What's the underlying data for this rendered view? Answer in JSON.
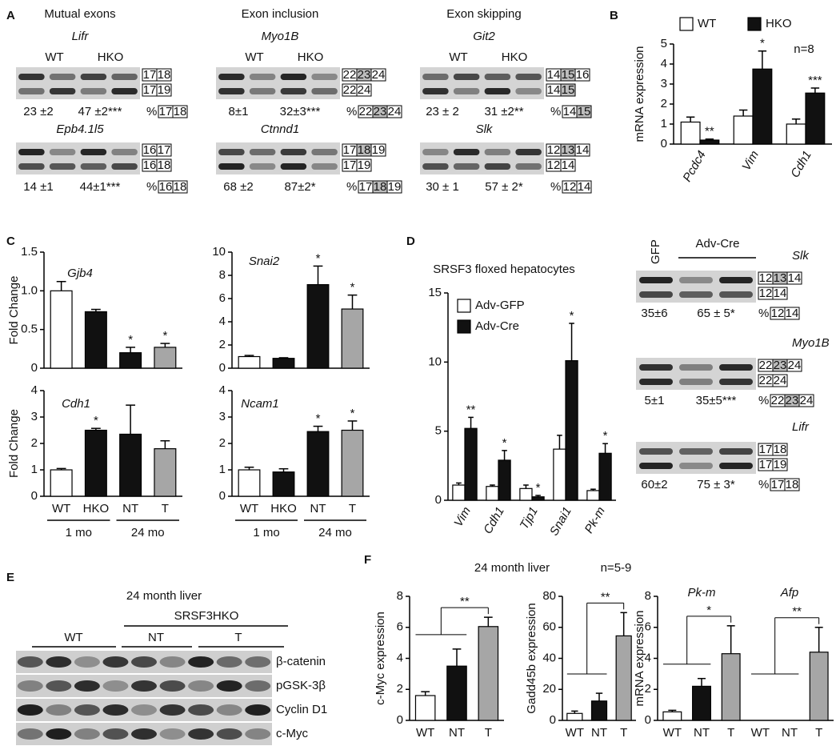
{
  "panel_labels": [
    "A",
    "B",
    "C",
    "D",
    "E",
    "F"
  ],
  "percent_sign": "%",
  "panel_a": {
    "headers": [
      "Mutual exons",
      "Exon inclusion",
      "Exon skipping"
    ],
    "lanes": [
      "WT",
      "HKO"
    ],
    "gels": [
      {
        "gene": "Lifr",
        "percent": [
          "23 ±2",
          "47 ±2***"
        ],
        "isoforms": [
          [
            "17",
            "18"
          ],
          [
            "17",
            "19"
          ]
        ],
        "quantified": [
          "17",
          "18"
        ]
      },
      {
        "gene": "Epb4.1l5",
        "percent": [
          "14 ±1",
          "44±1***"
        ],
        "isoforms": [
          [
            "16",
            "17"
          ],
          [
            "16",
            "18"
          ]
        ],
        "quantified": [
          "16",
          "18"
        ]
      },
      {
        "gene": "Myo1B",
        "percent": [
          "8±1",
          "32±3***"
        ],
        "isoforms": [
          [
            "22",
            "23",
            "24"
          ],
          [
            "22",
            "24"
          ]
        ],
        "quantified": [
          "22",
          "23",
          "24"
        ],
        "shaded": "23"
      },
      {
        "gene": "Ctnnd1",
        "percent": [
          "68 ±2",
          "87±2*"
        ],
        "isoforms": [
          [
            "17",
            "18",
            "19"
          ],
          [
            "17",
            "19"
          ]
        ],
        "quantified": [
          "17",
          "18",
          "19"
        ],
        "shaded": "18"
      },
      {
        "gene": "Git2",
        "percent": [
          "23 ± 2",
          "31 ±2**"
        ],
        "isoforms": [
          [
            "14",
            "15",
            "16"
          ],
          [
            "14",
            "15"
          ]
        ],
        "quantified": [
          "14",
          "15"
        ],
        "shaded": "15"
      },
      {
        "gene": "Slk",
        "percent": [
          "30 ± 1",
          "57 ± 2*"
        ],
        "isoforms": [
          [
            "12",
            "13",
            "14"
          ],
          [
            "12",
            "14"
          ]
        ],
        "quantified": [
          "12",
          "14"
        ],
        "shaded": "13"
      }
    ]
  },
  "panel_d_gels": {
    "lanes": [
      "GFP",
      "Adv-Cre"
    ],
    "gels": [
      {
        "gene": "Slk",
        "percent": [
          "35±6",
          "65 ± 5*"
        ],
        "isoforms": [
          [
            "12",
            "13",
            "14"
          ],
          [
            "12",
            "14"
          ]
        ],
        "quantified": [
          "12",
          "14"
        ],
        "shaded": "13"
      },
      {
        "gene": "Myo1B",
        "percent": [
          "5±1",
          "35±5***"
        ],
        "isoforms": [
          [
            "22",
            "23",
            "24"
          ],
          [
            "22",
            "24"
          ]
        ],
        "quantified": [
          "22",
          "23",
          "24"
        ],
        "shaded": "23"
      },
      {
        "gene": "Lifr",
        "percent": [
          "60±2",
          "75 ± 3*"
        ],
        "isoforms": [
          [
            "17",
            "18"
          ],
          [
            "17",
            "19"
          ]
        ],
        "quantified": [
          "17",
          "18"
        ]
      }
    ]
  },
  "panel_e": {
    "title": "24 month liver",
    "group": "SRSF3HKO",
    "lanes": [
      "WT",
      "NT",
      "T"
    ],
    "bands": [
      "β-catenin",
      "pGSK-3β",
      "Cyclin D1",
      "c-Myc"
    ]
  },
  "panel_f": {
    "title": "24 month liver",
    "n": "n=5-9"
  },
  "chart_data": [
    {
      "type": "bar",
      "ylabel": "mRNA expression",
      "note": "n=8",
      "categories": [
        "Pcdc4",
        "Vim",
        "Cdh1"
      ],
      "ylim": [
        0,
        5
      ],
      "yticks": [
        0,
        1,
        2,
        3,
        4,
        5
      ],
      "legend": "top",
      "series": [
        {
          "name": "WT",
          "color": "#ffffff",
          "values": [
            1.1,
            1.4,
            1.0
          ],
          "errors": [
            0.25,
            0.3,
            0.25
          ]
        },
        {
          "name": "HKO",
          "color": "#111111",
          "values": [
            0.2,
            3.75,
            2.55
          ],
          "errors": [
            0.05,
            0.9,
            0.25
          ],
          "annotations": [
            "**",
            "*",
            "***"
          ]
        }
      ]
    },
    {
      "type": "bar",
      "title": "Gjb4",
      "ylabel": "Fold Change",
      "categories": [
        null,
        null,
        null,
        null
      ],
      "ylim": [
        0,
        1.5
      ],
      "yticks": [
        0,
        0.5,
        {
          "value": 1,
          "label": "1.0"
        },
        1.5
      ],
      "series": [
        {
          "colors": [
            "#ffffff",
            "#111111",
            "#111111",
            "#a6a6a6"
          ],
          "values": [
            1.0,
            0.73,
            0.2,
            0.27
          ],
          "errors": [
            0.12,
            0.03,
            0.07,
            0.05
          ],
          "annotations": [
            null,
            null,
            "*",
            "*"
          ]
        }
      ]
    },
    {
      "type": "bar",
      "title": "Snai2",
      "categories": [
        null,
        null,
        null,
        null
      ],
      "ylim": [
        0,
        10
      ],
      "yticks": [
        0,
        2,
        4,
        6,
        8,
        10
      ],
      "series": [
        {
          "colors": [
            "#ffffff",
            "#111111",
            "#111111",
            "#a6a6a6"
          ],
          "values": [
            1.0,
            0.85,
            7.2,
            5.1
          ],
          "errors": [
            0.1,
            0.05,
            1.6,
            1.2
          ],
          "annotations": [
            null,
            null,
            "*",
            "*"
          ]
        }
      ]
    },
    {
      "type": "bar",
      "title": "Cdh1",
      "ylabel": "Fold Change",
      "categories": [
        "WT",
        "HKO",
        "NT",
        "T"
      ],
      "groups": [
        {
          "name": "1 mo"
        },
        {
          "name": "24 mo"
        }
      ],
      "ylim": [
        0,
        4
      ],
      "yticks": [
        0,
        1,
        2,
        3,
        4
      ],
      "series": [
        {
          "colors": [
            "#ffffff",
            "#111111",
            "#111111",
            "#a6a6a6"
          ],
          "values": [
            1.0,
            2.5,
            2.35,
            1.8
          ],
          "errors": [
            0.05,
            0.07,
            1.1,
            0.3
          ],
          "annotations": [
            null,
            "*",
            null,
            null
          ]
        }
      ]
    },
    {
      "type": "bar",
      "title": "Ncam1",
      "categories": [
        "WT",
        "HKO",
        "NT",
        "T"
      ],
      "groups": [
        {
          "name": "1 mo"
        },
        {
          "name": "24 mo"
        }
      ],
      "ylim": [
        0,
        4
      ],
      "yticks": [
        0,
        1,
        2,
        3,
        4
      ],
      "series": [
        {
          "colors": [
            "#ffffff",
            "#111111",
            "#111111",
            "#a6a6a6"
          ],
          "values": [
            1.0,
            0.92,
            2.45,
            2.5
          ],
          "errors": [
            0.1,
            0.12,
            0.2,
            0.35
          ],
          "annotations": [
            null,
            null,
            "*",
            "*"
          ]
        }
      ]
    },
    {
      "type": "bar",
      "title": "SRSF3 floxed hepatocytes",
      "categories": [
        "Vim",
        "Cdh1",
        "Tjp1",
        "Snai1",
        "Pk-m"
      ],
      "ylim": [
        0,
        15
      ],
      "yticks": [
        0,
        5,
        10,
        15
      ],
      "legend": "upper left",
      "series": [
        {
          "name": "Adv-GFP",
          "color": "#ffffff",
          "values": [
            1.1,
            1.0,
            0.85,
            3.7,
            0.7
          ],
          "errors": [
            0.15,
            0.1,
            0.25,
            1.0,
            0.1
          ]
        },
        {
          "name": "Adv-Cre",
          "color": "#111111",
          "values": [
            5.2,
            2.9,
            0.25,
            10.1,
            3.4
          ],
          "errors": [
            0.8,
            0.7,
            0.1,
            2.7,
            0.7
          ],
          "annotations": [
            "**",
            "*",
            "*",
            "*",
            "*"
          ]
        }
      ]
    },
    {
      "type": "bar",
      "ylabel": "c-Myc expression",
      "categories": [
        "WT",
        "NT",
        "T"
      ],
      "significance": "**",
      "ylim": [
        0,
        8
      ],
      "yticks": [
        0,
        2,
        4,
        6,
        8
      ],
      "series": [
        {
          "colors": [
            "#ffffff",
            "#111111",
            "#a6a6a6"
          ],
          "values": [
            1.6,
            3.5,
            6.05
          ],
          "errors": [
            0.25,
            1.1,
            0.6
          ]
        }
      ]
    },
    {
      "type": "bar",
      "ylabel": "Gadd45b expression",
      "categories": [
        "WT",
        "NT",
        "T"
      ],
      "significance": "**",
      "ylim": [
        0,
        80
      ],
      "yticks": [
        0,
        20,
        40,
        60,
        80
      ],
      "series": [
        {
          "colors": [
            "#ffffff",
            "#111111",
            "#a6a6a6"
          ],
          "values": [
            4.5,
            12.5,
            54.5
          ],
          "errors": [
            1.5,
            5,
            15
          ]
        }
      ]
    },
    {
      "type": "bar",
      "ylabel": "mRNA expression",
      "categories": [
        "WT",
        "NT",
        "T",
        "WT",
        "NT",
        "T"
      ],
      "groups": [
        {
          "name": "Pk-m",
          "significance": "*"
        },
        {
          "name": "Afp",
          "significance": "**"
        }
      ],
      "ylim": [
        0,
        8
      ],
      "yticks": [
        0,
        2,
        4,
        6,
        8
      ],
      "series": [
        {
          "colors": [
            "#ffffff",
            "#111111",
            "#a6a6a6",
            "#ffffff",
            "#111111",
            "#a6a6a6"
          ],
          "values": [
            0.55,
            2.2,
            4.3,
            null,
            null,
            4.4
          ],
          "errors": [
            0.1,
            0.5,
            1.8,
            null,
            null,
            1.6
          ]
        }
      ]
    }
  ]
}
